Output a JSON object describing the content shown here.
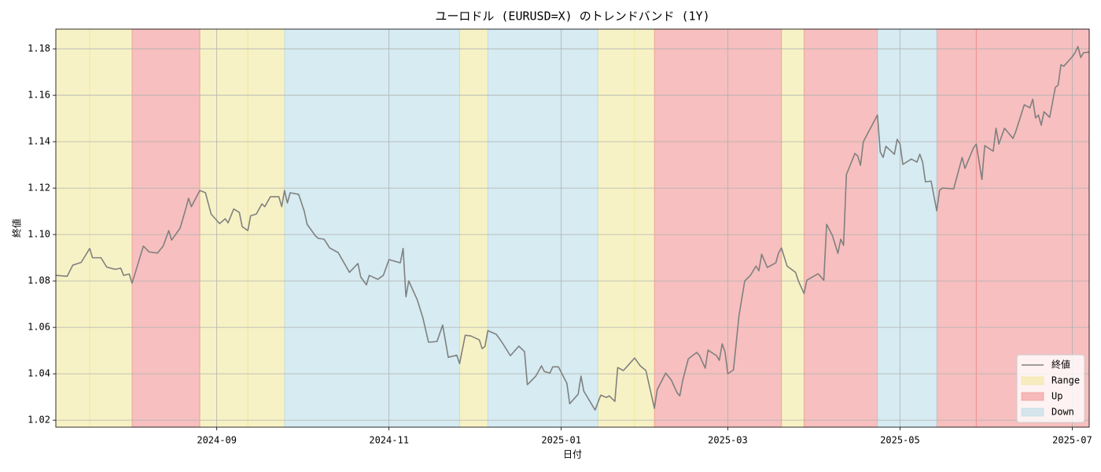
{
  "chart_data": {
    "type": "line",
    "title": "ユーロドル (EURUSD=X) のトレンドバンド (1Y)",
    "xlabel": "日付",
    "ylabel": "終値",
    "xlim": [
      "2024-07-06",
      "2025-07-07"
    ],
    "xticks": [
      "2024-09",
      "2024-11",
      "2025-01",
      "2025-03",
      "2025-05",
      "2025-07"
    ],
    "ylim": [
      1.017,
      1.1885
    ],
    "yticks": [
      1.02,
      1.04,
      1.06,
      1.08,
      {
        "value": 1.1,
        "label": "1.10"
      },
      1.12,
      1.14,
      1.16,
      1.18
    ],
    "grid": true,
    "legend_loc": "lower right",
    "band_alpha": 0.5,
    "x": [
      "2024-07-06",
      "2024-07-10",
      "2024-07-12",
      "2024-07-15",
      "2024-07-18",
      "2024-07-19",
      "2024-07-22",
      "2024-07-24",
      "2024-07-27",
      "2024-07-29",
      "2024-07-30",
      "2024-08-01",
      "2024-08-02",
      "2024-08-06",
      "2024-08-08",
      "2024-08-11",
      "2024-08-13",
      "2024-08-15",
      "2024-08-16",
      "2024-08-19",
      "2024-08-21",
      "2024-08-22",
      "2024-08-23",
      "2024-08-26",
      "2024-08-28",
      "2024-08-30",
      "2024-09-02",
      "2024-09-04",
      "2024-09-05",
      "2024-09-07",
      "2024-09-09",
      "2024-09-10",
      "2024-09-12",
      "2024-09-13",
      "2024-09-15",
      "2024-09-17",
      "2024-09-18",
      "2024-09-20",
      "2024-09-23",
      "2024-09-24",
      "2024-09-25",
      "2024-09-26",
      "2024-09-27",
      "2024-09-30",
      "2024-10-02",
      "2024-10-03",
      "2024-10-06",
      "2024-10-07",
      "2024-10-09",
      "2024-10-11",
      "2024-10-14",
      "2024-10-18",
      "2024-10-21",
      "2024-10-22",
      "2024-10-24",
      "2024-10-25",
      "2024-10-28",
      "2024-10-30",
      "2024-11-01",
      "2024-11-05",
      "2024-11-06",
      "2024-11-07",
      "2024-11-08",
      "2024-11-11",
      "2024-11-13",
      "2024-11-15",
      "2024-11-18",
      "2024-11-20",
      "2024-11-22",
      "2024-11-25",
      "2024-11-26",
      "2024-11-28",
      "2024-11-30",
      "2024-12-03",
      "2024-12-04",
      "2024-12-05",
      "2024-12-06",
      "2024-12-09",
      "2024-12-11",
      "2024-12-14",
      "2024-12-17",
      "2024-12-19",
      "2024-12-20",
      "2024-12-23",
      "2024-12-25",
      "2024-12-26",
      "2024-12-28",
      "2024-12-29",
      "2024-12-31",
      "2025-01-03",
      "2025-01-04",
      "2025-01-07",
      "2025-01-08",
      "2025-01-09",
      "2025-01-13",
      "2025-01-15",
      "2025-01-17",
      "2025-01-18",
      "2025-01-20",
      "2025-01-21",
      "2025-01-23",
      "2025-01-24",
      "2025-01-27",
      "2025-01-29",
      "2025-01-31",
      "2025-02-03",
      "2025-02-04",
      "2025-02-07",
      "2025-02-09",
      "2025-02-11",
      "2025-02-12",
      "2025-02-13",
      "2025-02-15",
      "2025-02-18",
      "2025-02-19",
      "2025-02-21",
      "2025-02-22",
      "2025-02-25",
      "2025-02-26",
      "2025-02-27",
      "2025-02-28",
      "2025-03-01",
      "2025-03-03",
      "2025-03-05",
      "2025-03-07",
      "2025-03-09",
      "2025-03-11",
      "2025-03-12",
      "2025-03-13",
      "2025-03-15",
      "2025-03-18",
      "2025-03-19",
      "2025-03-20",
      "2025-03-22",
      "2025-03-25",
      "2025-03-26",
      "2025-03-28",
      "2025-03-29",
      "2025-04-02",
      "2025-04-04",
      "2025-04-05",
      "2025-04-07",
      "2025-04-09",
      "2025-04-10",
      "2025-04-11",
      "2025-04-12",
      "2025-04-15",
      "2025-04-16",
      "2025-04-17",
      "2025-04-18",
      "2025-04-23",
      "2025-04-24",
      "2025-04-25",
      "2025-04-26",
      "2025-04-29",
      "2025-04-30",
      "2025-05-01",
      "2025-05-02",
      "2025-05-05",
      "2025-05-07",
      "2025-05-08",
      "2025-05-09",
      "2025-05-10",
      "2025-05-12",
      "2025-05-14",
      "2025-05-15",
      "2025-05-16",
      "2025-05-20",
      "2025-05-23",
      "2025-05-24",
      "2025-05-27",
      "2025-05-28",
      "2025-05-30",
      "2025-05-31",
      "2025-06-03",
      "2025-06-04",
      "2025-06-05",
      "2025-06-07",
      "2025-06-10",
      "2025-06-11",
      "2025-06-14",
      "2025-06-16",
      "2025-06-17",
      "2025-06-18",
      "2025-06-19",
      "2025-06-20",
      "2025-06-21",
      "2025-06-23",
      "2025-06-25",
      "2025-06-26",
      "2025-06-27",
      "2025-06-28",
      "2025-07-01",
      "2025-07-02",
      "2025-07-03",
      "2025-07-04",
      "2025-07-05",
      "2025-07-07"
    ],
    "series": [
      {
        "name": "終値",
        "color": "#808080",
        "values": [
          1.0824,
          1.082,
          1.0868,
          1.088,
          1.094,
          1.09,
          1.09,
          1.086,
          1.085,
          1.0855,
          1.0824,
          1.083,
          1.079,
          1.095,
          1.0925,
          1.092,
          1.095,
          1.1017,
          1.0976,
          1.1027,
          1.111,
          1.1156,
          1.112,
          1.119,
          1.118,
          1.1088,
          1.1047,
          1.1068,
          1.105,
          1.111,
          1.1095,
          1.1034,
          1.1017,
          1.1081,
          1.1088,
          1.1132,
          1.112,
          1.1163,
          1.1163,
          1.112,
          1.119,
          1.1136,
          1.118,
          1.1173,
          1.11,
          1.1044,
          1.0993,
          1.0983,
          1.098,
          1.0942,
          1.0922,
          1.0837,
          1.0875,
          1.0817,
          1.0783,
          1.0824,
          1.0807,
          1.0824,
          1.0892,
          1.0878,
          1.094,
          1.0732,
          1.08,
          1.0719,
          1.0641,
          1.0536,
          1.0539,
          1.061,
          1.0471,
          1.048,
          1.0444,
          1.0566,
          1.0563,
          1.0546,
          1.0508,
          1.0518,
          1.0586,
          1.057,
          1.0536,
          1.0478,
          1.0519,
          1.0495,
          1.0353,
          1.039,
          1.0434,
          1.041,
          1.0403,
          1.043,
          1.043,
          1.0359,
          1.0271,
          1.0312,
          1.039,
          1.0325,
          1.0244,
          1.0308,
          1.0298,
          1.0305,
          1.0281,
          1.0427,
          1.0414,
          1.0427,
          1.0468,
          1.0434,
          1.0414,
          1.0251,
          1.0332,
          1.0403,
          1.0373,
          1.0319,
          1.0305,
          1.037,
          1.0464,
          1.0492,
          1.0478,
          1.0424,
          1.0502,
          1.0478,
          1.0458,
          1.0529,
          1.0495,
          1.04,
          1.0417,
          1.0654,
          1.08,
          1.0824,
          1.0864,
          1.0844,
          1.0915,
          1.0858,
          1.0878,
          1.0922,
          1.0942,
          1.0864,
          1.0837,
          1.08,
          1.0746,
          1.0803,
          1.0831,
          1.0803,
          1.1044,
          1.0997,
          1.0919,
          1.098,
          1.0953,
          1.1258,
          1.1349,
          1.1339,
          1.1298,
          1.14,
          1.1515,
          1.1356,
          1.1332,
          1.138,
          1.1346,
          1.141,
          1.139,
          1.1302,
          1.1325,
          1.1312,
          1.1346,
          1.1312,
          1.1227,
          1.123,
          1.1102,
          1.119,
          1.12,
          1.1197,
          1.1332,
          1.1285,
          1.1373,
          1.139,
          1.1237,
          1.1383,
          1.1359,
          1.1458,
          1.139,
          1.1458,
          1.1414,
          1.1444,
          1.1559,
          1.1546,
          1.1583,
          1.1502,
          1.1515,
          1.1471,
          1.1529,
          1.1505,
          1.1634,
          1.1644,
          1.1732,
          1.1725,
          1.1766,
          1.1783,
          1.181,
          1.1763,
          1.1783,
          1.1786
        ]
      }
    ],
    "band_series": [
      {
        "name": "Range",
        "color": "#f0e68c",
        "periods": [
          [
            "2024-07-06",
            "2024-07-18"
          ],
          [
            "2024-07-18",
            "2024-08-02"
          ],
          [
            "2024-08-26",
            "2024-09-12"
          ],
          [
            "2024-09-12",
            "2024-09-25"
          ],
          [
            "2024-11-26",
            "2024-12-06"
          ],
          [
            "2025-01-14",
            "2025-01-27"
          ],
          [
            "2025-01-27",
            "2025-02-03"
          ],
          [
            "2025-03-20",
            "2025-03-28"
          ]
        ]
      },
      {
        "name": "Up",
        "color": "#f08080",
        "periods": [
          [
            "2024-08-02",
            "2024-08-26"
          ],
          [
            "2025-02-03",
            "2025-03-20"
          ],
          [
            "2025-03-28",
            "2025-04-23"
          ],
          [
            "2025-05-14",
            "2025-05-28"
          ],
          [
            "2025-05-28",
            "2025-07-07"
          ]
        ]
      },
      {
        "name": "Down",
        "color": "#add8e6",
        "periods": [
          [
            "2024-09-25",
            "2024-11-26"
          ],
          [
            "2024-12-06",
            "2025-01-14"
          ],
          [
            "2025-04-23",
            "2025-05-14"
          ]
        ]
      }
    ]
  }
}
